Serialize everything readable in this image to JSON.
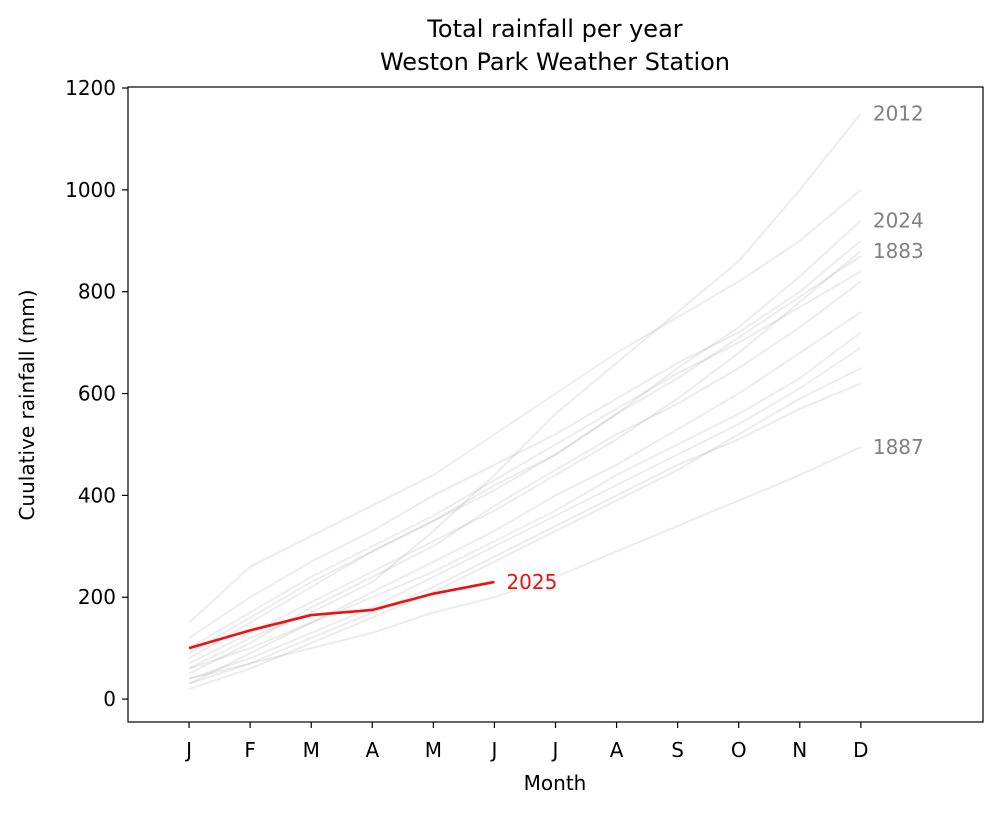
{
  "chart_data": {
    "type": "line",
    "title": "Total rainfall per year",
    "subtitle": "Weston Park Weather Station",
    "x_label": "Month",
    "y_label": "Cuulative rainfall (mm)",
    "categories": [
      "J",
      "F",
      "M",
      "A",
      "M",
      "J",
      "J",
      "A",
      "S",
      "O",
      "N",
      "D"
    ],
    "xlim": [
      -1,
      13
    ],
    "ylim": [
      -45,
      1202
    ],
    "yticks": [
      0,
      200,
      400,
      600,
      800,
      1000,
      1200
    ],
    "label_color": "#808080",
    "series": [
      {
        "values": [
          30,
          90,
          150,
          210,
          270,
          330,
          400,
          460,
          530,
          600,
          680,
          760
        ],
        "color": "#808080"
      },
      {
        "values": [
          50,
          110,
          180,
          240,
          300,
          380,
          450,
          520,
          580,
          650,
          730,
          820
        ],
        "color": "#808080"
      },
      {
        "values": [
          120,
          200,
          270,
          330,
          400,
          460,
          520,
          590,
          660,
          720,
          800,
          900
        ],
        "color": "#808080"
      },
      {
        "values": [
          20,
          60,
          110,
          160,
          210,
          270,
          330,
          390,
          450,
          520,
          590,
          650
        ],
        "color": "#808080"
      },
      {
        "values": [
          80,
          150,
          220,
          290,
          350,
          420,
          480,
          560,
          630,
          710,
          790,
          870
        ],
        "color": "#808080"
      },
      {
        "values": [
          40,
          80,
          130,
          180,
          240,
          300,
          360,
          420,
          480,
          540,
          610,
          690
        ],
        "color": "#808080"
      },
      {
        "values": [
          150,
          260,
          320,
          380,
          440,
          520,
          600,
          680,
          750,
          820,
          900,
          1000
        ],
        "color": "#808080"
      },
      {
        "values": [
          60,
          100,
          150,
          200,
          250,
          310,
          370,
          440,
          500,
          560,
          630,
          720
        ],
        "color": "#808080"
      },
      {
        "values": [
          100,
          170,
          240,
          300,
          360,
          430,
          500,
          570,
          640,
          700,
          770,
          840
        ],
        "color": "#808080"
      },
      {
        "values": [
          30,
          70,
          120,
          170,
          220,
          280,
          340,
          400,
          460,
          510,
          570,
          620
        ],
        "color": "#808080"
      },
      {
        "name": "2012",
        "values": [
          60,
          120,
          170,
          230,
          330,
          440,
          560,
          660,
          760,
          860,
          1000,
          1150
        ],
        "color": "#808080"
      },
      {
        "name": "2024",
        "values": [
          90,
          160,
          230,
          290,
          350,
          410,
          480,
          560,
          650,
          730,
          830,
          940
        ],
        "color": "#808080"
      },
      {
        "name": "1883",
        "values": [
          70,
          130,
          190,
          250,
          310,
          370,
          440,
          510,
          590,
          680,
          780,
          880
        ],
        "color": "#808080"
      },
      {
        "name": "1887",
        "values": [
          40,
          70,
          100,
          130,
          170,
          200,
          240,
          290,
          340,
          390,
          440,
          495
        ],
        "color": "#808080"
      },
      {
        "name": "2025",
        "values": [
          100,
          135,
          165,
          175,
          207,
          230,
          null,
          null,
          null,
          null,
          null,
          null
        ],
        "color": "#ee1111",
        "highlight": true
      }
    ]
  }
}
